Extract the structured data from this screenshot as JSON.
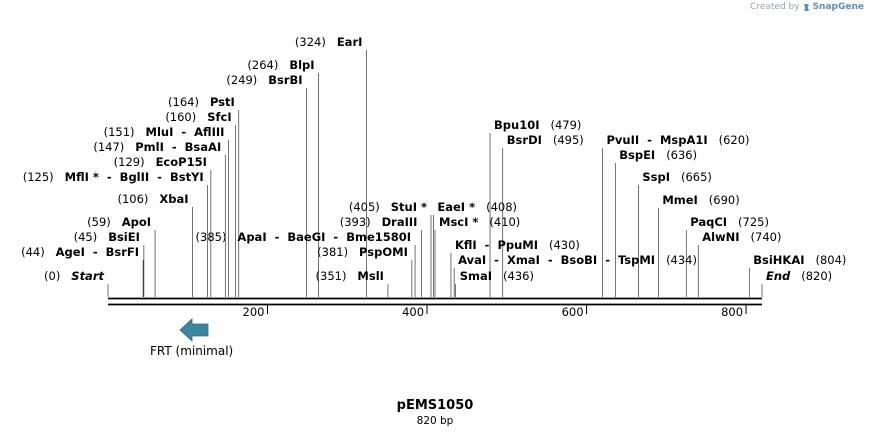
{
  "credit": {
    "prefix": "Created by",
    "brand": "SnapGene"
  },
  "plasmid": {
    "name": "pEMS1050",
    "length_label": "820 bp",
    "length": 820
  },
  "ruler": {
    "ticks": [
      200,
      400,
      600,
      800
    ]
  },
  "feature": {
    "name": "FRT (minimal)",
    "direction": "reverse",
    "start": 59,
    "end": 92,
    "color": "#3b86a0"
  },
  "sites": [
    {
      "pos": 0,
      "pos_label": "(0)",
      "text": "Start",
      "italic": true,
      "side": "left"
    },
    {
      "pos": 44,
      "pos_label": "(44)",
      "text": "AgeI  -  BsrFI",
      "side": "left"
    },
    {
      "pos": 45,
      "pos_label": "(45)",
      "text": "BsiEI",
      "side": "left"
    },
    {
      "pos": 59,
      "pos_label": "(59)",
      "text": "ApoI",
      "side": "left"
    },
    {
      "pos": 106,
      "pos_label": "(106)",
      "text": "XbaI",
      "side": "left"
    },
    {
      "pos": 125,
      "pos_label": "(125)",
      "text": "MflI *  -  BglII  -  BstYI",
      "side": "left"
    },
    {
      "pos": 129,
      "pos_label": "(129)",
      "text": "EcoP15I",
      "side": "left"
    },
    {
      "pos": 147,
      "pos_label": "(147)",
      "text": "PmlI  -  BsaAI",
      "side": "left"
    },
    {
      "pos": 151,
      "pos_label": "(151)",
      "text": "MluI  -  AflIII",
      "side": "left"
    },
    {
      "pos": 160,
      "pos_label": "(160)",
      "text": "SfcI",
      "side": "left"
    },
    {
      "pos": 164,
      "pos_label": "(164)",
      "text": "PstI",
      "side": "left"
    },
    {
      "pos": 249,
      "pos_label": "(249)",
      "text": "BsrBI",
      "side": "left"
    },
    {
      "pos": 264,
      "pos_label": "(264)",
      "text": "BlpI",
      "side": "left"
    },
    {
      "pos": 324,
      "pos_label": "(324)",
      "text": "EarI",
      "side": "left"
    },
    {
      "pos": 385,
      "pos_label": "(385)",
      "text": "ApaI  -  BaeGI  -  Bme1580I",
      "side": "left"
    },
    {
      "pos": 381,
      "pos_label": "(381)",
      "text": "PspOMI",
      "side": "left"
    },
    {
      "pos": 351,
      "pos_label": "(351)",
      "text": "MslI",
      "side": "left"
    },
    {
      "pos": 393,
      "pos_label": "(393)",
      "text": "DraIII",
      "side": "left"
    },
    {
      "pos": 405,
      "pos_label": "(405)",
      "text": "StuI *",
      "side": "left"
    },
    {
      "pos": 408,
      "pos_label": "(408)",
      "text": "EaeI *",
      "side": "right"
    },
    {
      "pos": 410,
      "pos_label": "(410)",
      "text": "MscI *",
      "side": "right"
    },
    {
      "pos": 430,
      "pos_label": "(430)",
      "text": "KflI  -  PpuMI",
      "side": "right"
    },
    {
      "pos": 434,
      "pos_label": "(434)",
      "text": "AvaI  -  XmaI  -  BsoBI  -  TspMI",
      "side": "right"
    },
    {
      "pos": 436,
      "pos_label": "(436)",
      "text": "SmaI",
      "side": "right"
    },
    {
      "pos": 479,
      "pos_label": "(479)",
      "text": "Bpu10I",
      "side": "right"
    },
    {
      "pos": 495,
      "pos_label": "(495)",
      "text": "BsrDI",
      "side": "right"
    },
    {
      "pos": 620,
      "pos_label": "(620)",
      "text": "PvuII  -  MspA1I",
      "side": "right"
    },
    {
      "pos": 636,
      "pos_label": "(636)",
      "text": "BspEI",
      "side": "right"
    },
    {
      "pos": 665,
      "pos_label": "(665)",
      "text": "SspI",
      "side": "right"
    },
    {
      "pos": 690,
      "pos_label": "(690)",
      "text": "MmeI",
      "side": "right"
    },
    {
      "pos": 725,
      "pos_label": "(725)",
      "text": "PaqCI",
      "side": "right"
    },
    {
      "pos": 740,
      "pos_label": "(740)",
      "text": "AlwNI",
      "side": "right"
    },
    {
      "pos": 804,
      "pos_label": "(804)",
      "text": "BsiHKAI",
      "side": "right"
    },
    {
      "pos": 820,
      "pos_label": "(820)",
      "text": "End",
      "italic": true,
      "side": "right"
    }
  ]
}
